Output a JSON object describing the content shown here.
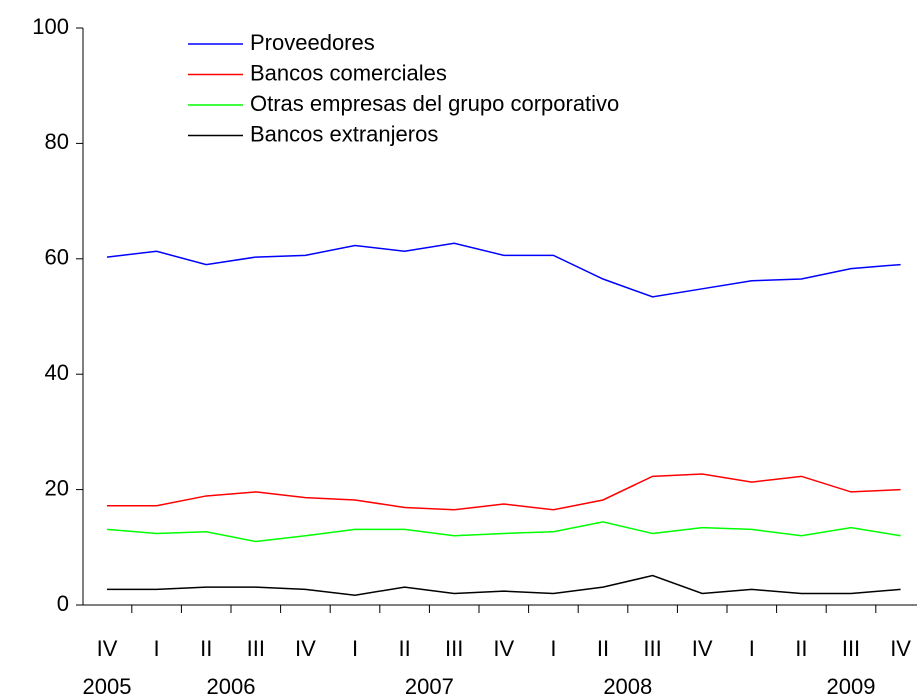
{
  "chart_data": {
    "type": "line",
    "categories": [
      "IV",
      "I",
      "II",
      "III",
      "IV",
      "I",
      "II",
      "III",
      "IV",
      "I",
      "II",
      "III",
      "IV",
      "I",
      "II",
      "III",
      "IV"
    ],
    "years": [
      "2005",
      "2006",
      "2007",
      "2008",
      "2009"
    ],
    "series": [
      {
        "name": "Proveedores",
        "color": "#0000ff",
        "values": [
          60.3,
          61.3,
          59,
          60.3,
          60.6,
          62.3,
          61.3,
          62.7,
          60.6,
          60.6,
          56.5,
          53.4,
          54.8,
          56.2,
          56.5,
          58.3,
          59
        ]
      },
      {
        "name": "Bancos comerciales",
        "color": "#ff0000",
        "values": [
          17.2,
          17.2,
          18.9,
          19.6,
          18.6,
          18.2,
          16.9,
          16.5,
          17.5,
          16.5,
          18.2,
          22.3,
          22.7,
          21.3,
          22.3,
          19.6,
          20
        ]
      },
      {
        "name": "Otras empresas del grupo corporativo",
        "color": "#00ff00",
        "values": [
          13.1,
          12.4,
          12.7,
          11,
          12,
          13.1,
          13.1,
          12,
          12.4,
          12.7,
          14.4,
          12.4,
          13.4,
          13.1,
          12,
          13.4,
          12
        ]
      },
      {
        "name": "Bancos extranjeros",
        "color": "#000000",
        "values": [
          2.7,
          2.7,
          3.1,
          3.1,
          2.7,
          1.7,
          3.1,
          2,
          2.4,
          2,
          3.1,
          5.1,
          2,
          2.7,
          2,
          2,
          2.7
        ]
      }
    ],
    "ylim": [
      0,
      100
    ],
    "yticks": [
      0,
      20,
      40,
      60,
      80,
      100
    ]
  }
}
